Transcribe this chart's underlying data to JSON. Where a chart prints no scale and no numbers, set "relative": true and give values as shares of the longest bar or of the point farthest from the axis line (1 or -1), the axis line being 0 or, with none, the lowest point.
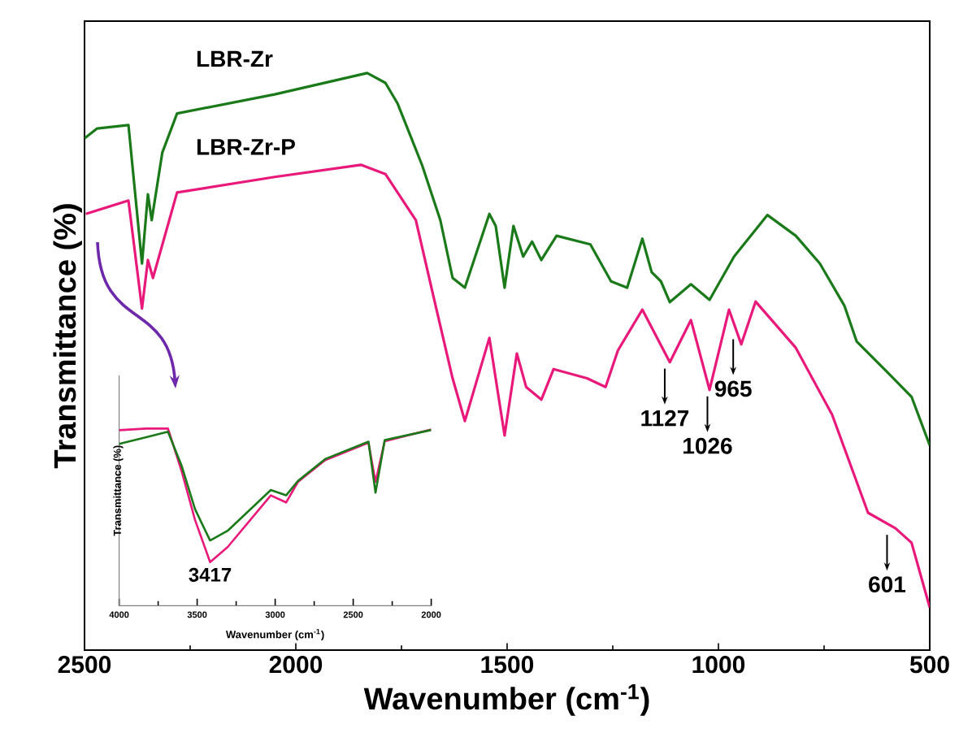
{
  "chart_data": [
    {
      "type": "line",
      "xlabel": "Wavenumber (cm$^{-1}$)",
      "ylabel": "Transmittance (%)",
      "relative": true,
      "xlim": [
        2500,
        500
      ],
      "xticks": [
        2500,
        2000,
        1500,
        1000,
        500
      ],
      "series": [
        {
          "name": "LBR-Zr",
          "color": "#1a7a1a",
          "x": [
            2500,
            2470,
            2396,
            2364,
            2350,
            2341,
            2316,
            2281,
            2050,
            1831,
            1788,
            1759,
            1701,
            1658,
            1629,
            1600,
            1542,
            1527,
            1506,
            1485,
            1462,
            1441,
            1419,
            1383,
            1303,
            1254,
            1216,
            1180,
            1158,
            1136,
            1115,
            1065,
            1021,
            963,
            884,
            817,
            760,
            702,
            673,
            601,
            543,
            500
          ],
          "values": [
            0.887,
            0.904,
            0.91,
            0.67,
            0.79,
            0.745,
            0.862,
            0.93,
            0.963,
            1.0,
            0.983,
            0.947,
            0.84,
            0.745,
            0.645,
            0.628,
            0.756,
            0.735,
            0.628,
            0.735,
            0.682,
            0.708,
            0.676,
            0.718,
            0.703,
            0.639,
            0.628,
            0.713,
            0.655,
            0.639,
            0.603,
            0.634,
            0.607,
            0.682,
            0.754,
            0.718,
            0.67,
            0.597,
            0.535,
            0.482,
            0.439,
            0.355
          ]
        },
        {
          "name": "LBR-Zr-P",
          "color": "#e8197a",
          "x": [
            2497,
            2396,
            2364,
            2350,
            2338,
            2281,
            2050,
            1846,
            1788,
            1716,
            1673,
            1629,
            1600,
            1542,
            1506,
            1477,
            1455,
            1419,
            1390,
            1311,
            1267,
            1238,
            1180,
            1115,
            1065,
            1021,
            975,
            946,
            912,
            817,
            731,
            646,
            581,
            543,
            500
          ],
          "values": [
            0.756,
            0.779,
            0.592,
            0.676,
            0.645,
            0.793,
            0.82,
            0.841,
            0.825,
            0.745,
            0.609,
            0.471,
            0.397,
            0.541,
            0.372,
            0.514,
            0.456,
            0.434,
            0.487,
            0.471,
            0.456,
            0.519,
            0.59,
            0.499,
            0.572,
            0.451,
            0.59,
            0.53,
            0.604,
            0.524,
            0.408,
            0.238,
            0.211,
            0.186,
            0.074
          ]
        }
      ],
      "annotations": [
        {
          "text": "1127",
          "x": 1127,
          "y": 0.499
        },
        {
          "text": "1026",
          "x": 1026,
          "y": 0.451
        },
        {
          "text": "965",
          "x": 965,
          "y": 0.55
        },
        {
          "text": "601",
          "x": 601,
          "y": 0.211
        }
      ]
    },
    {
      "type": "line",
      "xlabel": "Wavenumber (cm$^{-1}$)",
      "ylabel": "Transmittance (%)",
      "relative": true,
      "xlim": [
        4000,
        2000
      ],
      "xticks": [
        4000,
        3500,
        3000,
        2500,
        2000
      ],
      "series": [
        {
          "color": "#e8197a",
          "x": [
            4000,
            3826,
            3687,
            3600,
            3514,
            3417,
            3305,
            3028,
            2930,
            2854,
            2680,
            2402,
            2357,
            2298,
            2000
          ],
          "values": [
            0.991,
            1.0,
            1.0,
            0.761,
            0.485,
            0.246,
            0.331,
            0.623,
            0.583,
            0.699,
            0.822,
            0.92,
            0.699,
            0.929,
            0.995
          ]
        },
        {
          "color": "#1a7a1a",
          "x": [
            4000,
            3826,
            3687,
            3600,
            3514,
            3417,
            3305,
            3028,
            2930,
            2854,
            2680,
            2402,
            2357,
            2298,
            2000
          ],
          "values": [
            0.914,
            0.951,
            0.982,
            0.791,
            0.546,
            0.368,
            0.423,
            0.653,
            0.623,
            0.705,
            0.828,
            0.926,
            0.638,
            0.935,
            0.992
          ]
        }
      ],
      "annotations": [
        {
          "text": "3417",
          "x": 3417,
          "y": 0.246
        }
      ]
    }
  ]
}
